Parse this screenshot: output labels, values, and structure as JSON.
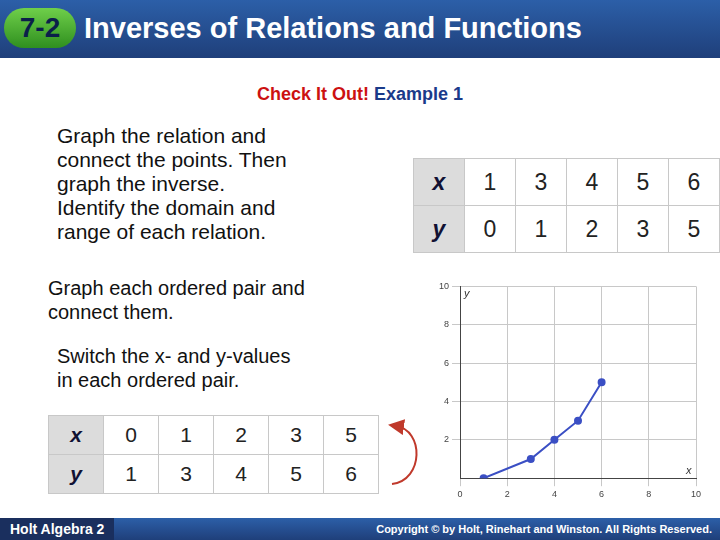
{
  "header": {
    "number": "7-2",
    "title": "Inverses of Relations and Functions"
  },
  "heading": {
    "prefix": "Check It Out!",
    "text": "Example 1"
  },
  "instructions": [
    "Graph the relation and",
    "connect the points. Then",
    "graph the inverse.",
    "Identify the domain and",
    "range of each relation."
  ],
  "step1": [
    "Graph each ordered pair and",
    "connect them."
  ],
  "step2": [
    "Switch the x- and y-values",
    "in each ordered pair."
  ],
  "relation_table": {
    "rows": [
      {
        "label": "x",
        "values": [
          1,
          3,
          4,
          5,
          6
        ]
      },
      {
        "label": "y",
        "values": [
          0,
          1,
          2,
          3,
          5
        ]
      }
    ]
  },
  "inverse_table": {
    "rows": [
      {
        "label": "x",
        "values": [
          0,
          1,
          2,
          3,
          5
        ]
      },
      {
        "label": "y",
        "values": [
          1,
          3,
          4,
          5,
          6
        ]
      }
    ]
  },
  "footer": {
    "left": "Holt Algebra 2",
    "right": "Copyright © by Holt, Rinehart and Winston. All Rights Reserved."
  },
  "chart_data": {
    "type": "line",
    "x": [
      1,
      3,
      4,
      5,
      6
    ],
    "values": [
      0,
      1,
      2,
      3,
      5
    ],
    "x_label": "x",
    "y_label": "y",
    "xlim": [
      0,
      10
    ],
    "ylim": [
      0,
      10
    ],
    "xticks": [
      0,
      2,
      4,
      6,
      8,
      10
    ],
    "yticks": [
      2,
      4,
      6,
      8,
      10
    ],
    "grid": true,
    "color": "#3b4fc4",
    "marker": "circle"
  }
}
